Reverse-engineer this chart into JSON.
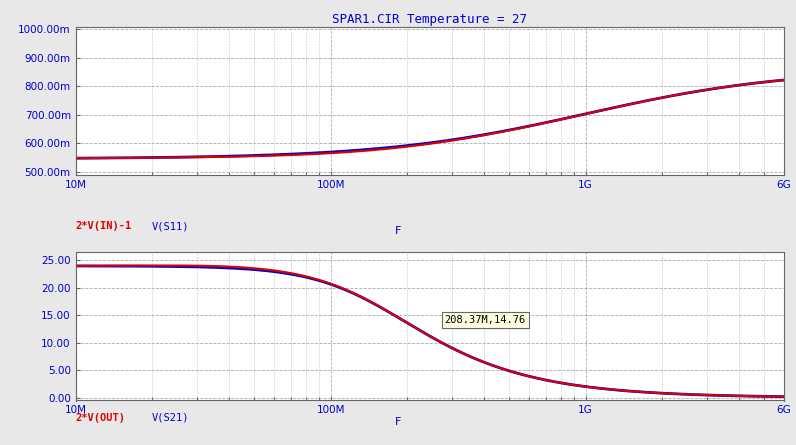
{
  "title": "SPAR1.CIR Temperature = 27",
  "title_color": "#0000cc",
  "bg_color": "#e8e8e8",
  "plot_bg_color": "#ffffff",
  "grid_color": "#888888",
  "top": {
    "ylabel_ticks": [
      "500.00m",
      "600.00m",
      "700.00m",
      "800.00m",
      "900.00m",
      "1000.00m"
    ],
    "yticks": [
      0.5,
      0.6,
      0.7,
      0.8,
      0.9,
      1.0
    ],
    "ylim": [
      0.488,
      1.008
    ],
    "xlabel": "F",
    "legend1": "2*V(IN)-1",
    "legend2": "V(S11)",
    "legend1_color": "#dd0000",
    "legend2_color": "#0000cc"
  },
  "bottom": {
    "ylabel_ticks": [
      "0.00",
      "5.00",
      "10.00",
      "15.00",
      "20.00",
      "25.00"
    ],
    "yticks": [
      0.0,
      5.0,
      10.0,
      15.0,
      20.0,
      25.0
    ],
    "ylim": [
      -0.5,
      26.5
    ],
    "xlabel": "F",
    "legend1": "2*V(OUT)",
    "legend2": "V(S21)",
    "legend1_color": "#dd0000",
    "legend2_color": "#0000cc",
    "annotation": "208.37M,14.76"
  },
  "xlim": [
    10000000.0,
    6000000000.0
  ],
  "xtick_locs": [
    10000000.0,
    100000000.0,
    1000000000.0,
    6000000000.0
  ],
  "xtick_labels": [
    "10M",
    "100M",
    "1G",
    "6G"
  ]
}
